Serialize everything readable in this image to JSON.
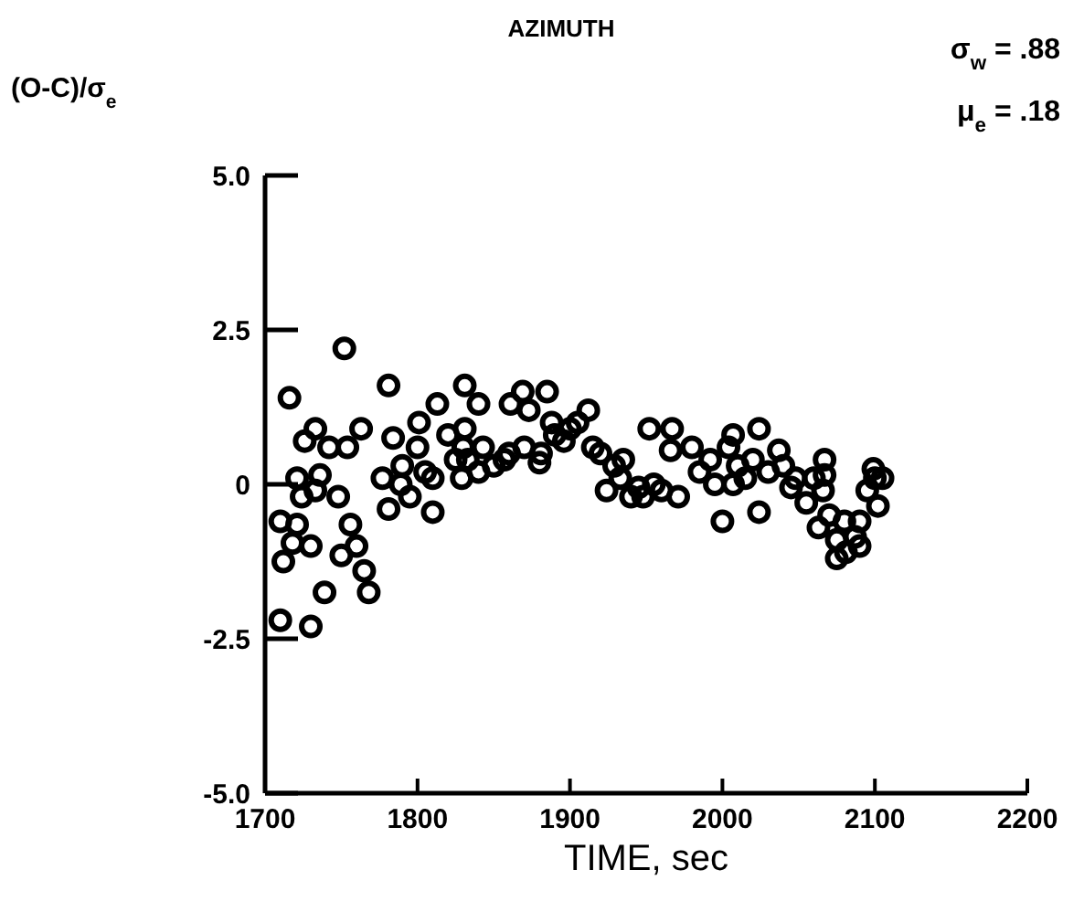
{
  "chart_data": {
    "type": "scatter",
    "title": "AZIMUTH",
    "ylabel": "(O-C)/σ$_{e}$",
    "xlabel": "TIME, sec",
    "annotations": [
      "σ$_{w}$ = .88",
      "μ$_{e}$ = .18"
    ],
    "marker": "circle",
    "grid": false,
    "xlim": [
      1700,
      2200
    ],
    "xticks": [
      1700,
      1800,
      1900,
      2000,
      2100,
      2200
    ],
    "ylim": [
      -5,
      5
    ],
    "yticks": [
      {
        "value": -5,
        "label": "-5.0"
      },
      {
        "value": -2.5,
        "label": "-2.5"
      },
      0,
      {
        "value": 2.5,
        "label": "2.5"
      },
      {
        "value": 5,
        "label": "5.0"
      }
    ],
    "series": [
      {
        "color": "#000000",
        "x": [
          1752,
          1716,
          1781,
          1733,
          1726,
          1763,
          1742,
          1754,
          1721,
          1736,
          1724,
          1733,
          1748,
          1710,
          1721,
          1756,
          1718,
          1730,
          1760,
          1750,
          1712,
          1765,
          1768,
          1739,
          1710,
          1730,
          1777,
          1789,
          1781,
          1810,
          1784,
          1801,
          1813,
          1810,
          1825,
          1831,
          1840,
          1831,
          1843,
          1833,
          1857,
          1829,
          1861,
          1869,
          1885,
          1873,
          1888,
          1912,
          1896,
          1920,
          1881,
          1929,
          1924,
          1940,
          1948,
          1952,
          1967,
          1966,
          1971,
          1933,
          1980,
          1992,
          2007,
          2024,
          2004,
          2007,
          2000,
          2024,
          2037,
          2015,
          2048,
          2055,
          2067,
          2067,
          2066,
          2063,
          2075,
          2081,
          2075,
          2099,
          2095,
          2102,
          2090,
          2087,
          1840,
          1850,
          1860,
          1870,
          1880,
          1890,
          1900,
          1905,
          1915,
          1935,
          1945,
          1955,
          1960,
          1985,
          1995,
          2010,
          2020,
          2030,
          2040,
          2045,
          2060,
          2070,
          2080,
          2090,
          2100,
          2105,
          1790,
          1800,
          1820,
          1830,
          1805,
          1795
        ],
        "values": [
          2.2,
          1.4,
          1.6,
          0.9,
          0.7,
          0.9,
          0.6,
          0.6,
          0.1,
          0.15,
          -0.2,
          -0.1,
          -0.2,
          -0.6,
          -0.65,
          -0.65,
          -0.95,
          -1.0,
          -1.0,
          -1.15,
          -1.25,
          -1.4,
          -1.75,
          -1.75,
          -2.2,
          -2.3,
          0.1,
          0,
          -0.4,
          -0.45,
          0.75,
          1.0,
          1.3,
          0.1,
          0.4,
          1.6,
          1.3,
          0.9,
          0.6,
          0.4,
          0.4,
          0.1,
          1.3,
          1.5,
          1.5,
          1.2,
          1.0,
          1.2,
          0.7,
          0.5,
          0.5,
          0.3,
          -0.1,
          -0.2,
          -0.2,
          0.9,
          0.9,
          0.55,
          -0.2,
          0.1,
          0.6,
          0.4,
          0.8,
          0.9,
          0.6,
          0,
          -0.6,
          -0.45,
          0.55,
          0.1,
          0.1,
          -0.3,
          0.4,
          0.15,
          -0.1,
          -0.7,
          -0.9,
          -1.1,
          -1.2,
          0.25,
          -0.1,
          -0.35,
          -0.6,
          -0.85,
          0.2,
          0.3,
          0.5,
          0.6,
          0.35,
          0.8,
          0.9,
          1.0,
          0.6,
          0.4,
          -0.05,
          0,
          -0.1,
          0.2,
          0,
          0.3,
          0.4,
          0.2,
          0.3,
          -0.05,
          0.1,
          -0.5,
          -0.6,
          -1.0,
          0.1,
          0.1,
          0.3,
          0.6,
          0.8,
          0.6,
          0.2,
          -0.2
        ]
      }
    ]
  }
}
